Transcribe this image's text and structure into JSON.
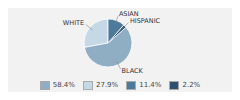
{
  "chart_data": {
    "type": "pie",
    "categories": [
      "WHITE",
      "BLACK",
      "HISPANIC",
      "ASIAN"
    ],
    "values": [
      27.9,
      58.4,
      2.2,
      11.4
    ],
    "colors": [
      "#c5d8e5",
      "#8faec4",
      "#2d5070",
      "#4e7a9a"
    ],
    "legend": "bottom",
    "legend_items": [
      {
        "label": "58.4%",
        "color": "#8faec4"
      },
      {
        "label": "27.9%",
        "color": "#c5d8e5"
      },
      {
        "label": "11.4%",
        "color": "#4e7a9a"
      },
      {
        "label": "2.2%",
        "color": "#2d5070"
      }
    ]
  }
}
